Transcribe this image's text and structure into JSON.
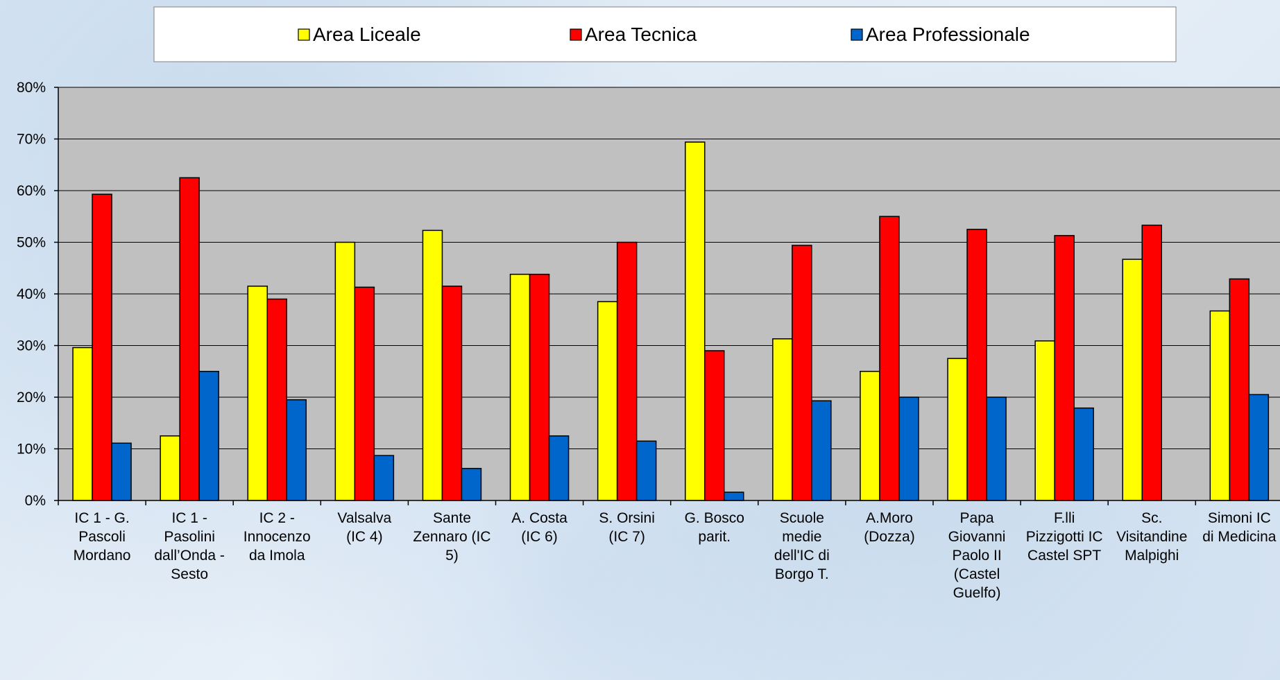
{
  "chart_data": {
    "type": "bar",
    "categories": [
      [
        "IC 1 - G.",
        "Pascoli",
        "Mordano"
      ],
      [
        "IC 1 -",
        "Pasolini",
        "dall’Onda -",
        "Sesto"
      ],
      [
        "IC 2 -",
        "Innocenzo",
        "da Imola"
      ],
      [
        "Valsalva",
        "(IC 4)"
      ],
      [
        "Sante",
        "Zennaro (IC",
        "5)"
      ],
      [
        "A. Costa",
        "(IC 6)"
      ],
      [
        "S. Orsini",
        "(IC 7)"
      ],
      [
        "G. Bosco",
        "parit."
      ],
      [
        "Scuole",
        "medie",
        "dell'IC di",
        "Borgo T."
      ],
      [
        "A.Moro",
        "(Dozza)"
      ],
      [
        "Papa",
        "Giovanni",
        "Paolo II",
        "(Castel",
        "Guelfo)"
      ],
      [
        "F.lli",
        "Pizzigotti IC",
        "Castel SPT"
      ],
      [
        "Sc.",
        "Visitandine",
        "Malpighi"
      ],
      [
        "Simoni IC",
        "di Medicina"
      ]
    ],
    "series": [
      {
        "name": "Area Liceale",
        "color": "#ffff00",
        "values": [
          29.6,
          12.5,
          41.5,
          50.0,
          52.3,
          43.8,
          38.5,
          69.4,
          31.3,
          25.0,
          27.5,
          30.9,
          46.7,
          36.7
        ]
      },
      {
        "name": "Area Tecnica",
        "color": "#ff0000",
        "values": [
          59.3,
          62.5,
          39.0,
          41.3,
          41.5,
          43.8,
          50.0,
          29.0,
          49.4,
          55.0,
          52.5,
          51.3,
          53.3,
          42.9
        ]
      },
      {
        "name": "Area Professionale",
        "color": "#0066cc",
        "values": [
          11.1,
          25.0,
          19.5,
          8.7,
          6.2,
          12.5,
          11.5,
          1.6,
          19.3,
          20.0,
          20.0,
          17.9,
          0,
          20.5
        ]
      }
    ],
    "yticks": [
      "0%",
      "10%",
      "20%",
      "30%",
      "40%",
      "50%",
      "60%",
      "70%",
      "80%"
    ],
    "ylim": [
      0,
      80
    ],
    "grid": true,
    "legend_position": "top"
  }
}
